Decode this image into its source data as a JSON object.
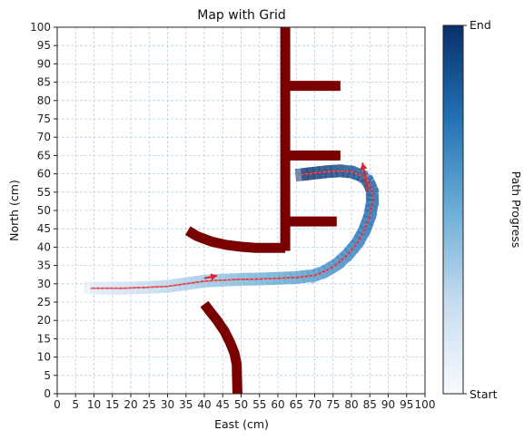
{
  "chart_data": {
    "type": "scatter",
    "title": "Map with Grid",
    "xlabel": "East (cm)",
    "ylabel": "North (cm)",
    "xlim": [
      0,
      100
    ],
    "ylim": [
      0,
      100
    ],
    "xticks": [
      0,
      5,
      10,
      15,
      20,
      25,
      30,
      35,
      40,
      45,
      50,
      55,
      60,
      65,
      70,
      75,
      80,
      85,
      90,
      95,
      100
    ],
    "yticks": [
      0,
      5,
      10,
      15,
      20,
      25,
      30,
      35,
      40,
      45,
      50,
      55,
      60,
      65,
      70,
      75,
      80,
      85,
      90,
      95,
      100
    ],
    "grid": true,
    "obstacle_color": "#7a0000",
    "path_line_color": "#e8202a",
    "obstacles": [
      {
        "x": [
          62,
          62
        ],
        "y": [
          100,
          39
        ]
      },
      {
        "x": [
          62,
          77
        ],
        "y": [
          84,
          84
        ]
      },
      {
        "x": [
          62,
          77
        ],
        "y": [
          65,
          65
        ]
      },
      {
        "x": [
          62,
          76
        ],
        "y": [
          47,
          47
        ]
      },
      {
        "x": [
          35.5,
          38,
          42,
          46,
          50,
          54,
          58,
          62
        ],
        "y": [
          44.5,
          43,
          41.5,
          40.6,
          40.1,
          39.8,
          39.8,
          39.8
        ]
      },
      {
        "x": [
          40,
          41.5,
          43.5,
          45.5,
          47,
          48.2,
          48.8,
          49
        ],
        "y": [
          24.5,
          22.5,
          20,
          17,
          14,
          11,
          8,
          0
        ]
      }
    ],
    "path": {
      "x": [
        9,
        13,
        18,
        24,
        30,
        35,
        40,
        45,
        50,
        55,
        60,
        65,
        70,
        73,
        76,
        79,
        81.5,
        83.5,
        85,
        85.7,
        85.6,
        84.5,
        82.5,
        80,
        77,
        73.5,
        70,
        66.5
      ],
      "y": [
        28.8,
        28.8,
        28.8,
        29,
        29.3,
        30,
        30.7,
        31,
        31.2,
        31.3,
        31.5,
        31.7,
        32.3,
        33.5,
        35.3,
        38,
        41,
        44.5,
        48.5,
        52.5,
        55.5,
        58,
        59.6,
        60.5,
        60.8,
        60.6,
        60.2,
        59.8
      ]
    },
    "arrows": [
      {
        "from": [
          40,
          31.5
        ],
        "to": [
          43.5,
          32.2
        ]
      },
      {
        "from": [
          84.5,
          55
        ],
        "to": [
          83,
          63
        ]
      }
    ],
    "colorbar": {
      "label": "Path Progress",
      "top_label": "End",
      "bottom_label": "Start",
      "colors": [
        "#f7fbff",
        "#c6dbef",
        "#6baed6",
        "#2171b5",
        "#08306b"
      ]
    }
  }
}
